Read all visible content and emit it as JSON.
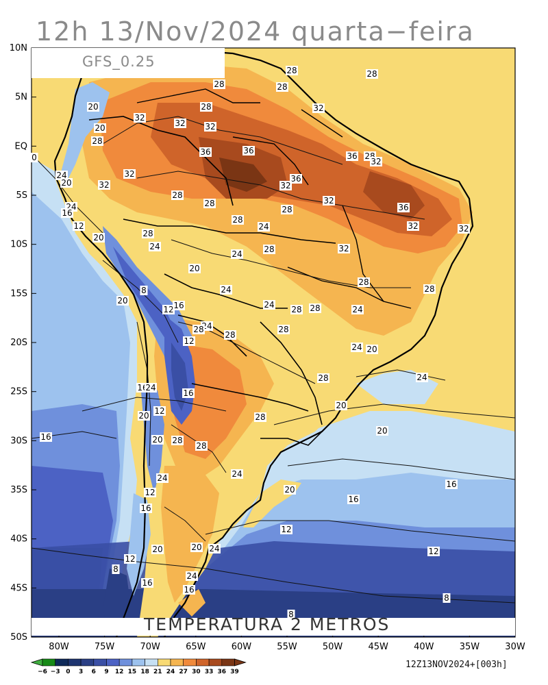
{
  "title": "12h 13/Nov/2024 quarta−feira",
  "model": "GFS_0.25",
  "variable": "TEMPERATURA 2 METROS",
  "run": "12Z13NOV2024+[003h]",
  "lat_labels": [
    "10N",
    "5N",
    "EQ",
    "5S",
    "10S",
    "15S",
    "20S",
    "25S",
    "30S",
    "35S",
    "40S",
    "45S",
    "50S"
  ],
  "lon_labels": [
    "80W",
    "75W",
    "70W",
    "65W",
    "60W",
    "55W",
    "50W",
    "45W",
    "40W",
    "35W",
    "30W"
  ],
  "colorbar": {
    "labels": [
      "−6",
      "−3",
      "0",
      "3",
      "6",
      "9",
      "12",
      "15",
      "18",
      "21",
      "24",
      "27",
      "30",
      "33",
      "36",
      "39"
    ],
    "colors": [
      "#3fae3f",
      "#178a17",
      "#0f2a5a",
      "#1e3570",
      "#2a3f85",
      "#3a4fa5",
      "#4c62c4",
      "#6f90dc",
      "#9dc2ee",
      "#c6e0f4",
      "#f8da74",
      "#f5b550",
      "#f08a3c",
      "#cf642a",
      "#a84a1e",
      "#7a3514"
    ]
  },
  "contour_labels": [
    {
      "text": "28"
    },
    {
      "text": "28"
    },
    {
      "text": "28"
    },
    {
      "text": "28"
    },
    {
      "text": "32"
    },
    {
      "text": "20"
    },
    {
      "text": "32"
    },
    {
      "text": "32"
    },
    {
      "text": "28"
    },
    {
      "text": "32"
    },
    {
      "text": "20"
    },
    {
      "text": "28"
    },
    {
      "text": "36"
    },
    {
      "text": "36"
    },
    {
      "text": "36"
    },
    {
      "text": "28"
    },
    {
      "text": "32"
    },
    {
      "text": "0"
    },
    {
      "text": "24"
    },
    {
      "text": "20"
    },
    {
      "text": "32"
    },
    {
      "text": "32"
    },
    {
      "text": "36"
    },
    {
      "text": "32"
    },
    {
      "text": "28"
    },
    {
      "text": "28"
    },
    {
      "text": "32"
    },
    {
      "text": "24"
    },
    {
      "text": "16"
    },
    {
      "text": "12"
    },
    {
      "text": "36"
    },
    {
      "text": "28"
    },
    {
      "text": "24"
    },
    {
      "text": "20"
    },
    {
      "text": "28"
    },
    {
      "text": "24"
    },
    {
      "text": "32"
    },
    {
      "text": "28"
    },
    {
      "text": "32"
    },
    {
      "text": "24"
    },
    {
      "text": "28"
    },
    {
      "text": "20"
    },
    {
      "text": "8"
    },
    {
      "text": "12"
    },
    {
      "text": "16"
    },
    {
      "text": "24"
    },
    {
      "text": "28"
    },
    {
      "text": "24"
    },
    {
      "text": "28"
    },
    {
      "text": "28"
    },
    {
      "text": "20"
    },
    {
      "text": "24"
    },
    {
      "text": "28"
    },
    {
      "text": "32"
    },
    {
      "text": "28"
    },
    {
      "text": "12"
    },
    {
      "text": "28"
    },
    {
      "text": "24"
    },
    {
      "text": "20"
    },
    {
      "text": "28"
    },
    {
      "text": "24"
    },
    {
      "text": "24"
    },
    {
      "text": "16"
    },
    {
      "text": "24"
    },
    {
      "text": "12"
    },
    {
      "text": "20"
    },
    {
      "text": "28"
    },
    {
      "text": "20"
    },
    {
      "text": "20"
    },
    {
      "text": "12"
    },
    {
      "text": "28"
    },
    {
      "text": "28"
    },
    {
      "text": "20"
    },
    {
      "text": "16"
    },
    {
      "text": "16"
    },
    {
      "text": "28"
    },
    {
      "text": "24"
    },
    {
      "text": "24"
    },
    {
      "text": "20"
    },
    {
      "text": "12"
    },
    {
      "text": "16"
    },
    {
      "text": "16"
    },
    {
      "text": "16"
    },
    {
      "text": "12"
    },
    {
      "text": "20"
    },
    {
      "text": "20"
    },
    {
      "text": "24"
    },
    {
      "text": "12"
    },
    {
      "text": "8"
    },
    {
      "text": "12"
    },
    {
      "text": "24"
    },
    {
      "text": "16"
    },
    {
      "text": "16"
    },
    {
      "text": "8"
    },
    {
      "text": "8"
    }
  ]
}
